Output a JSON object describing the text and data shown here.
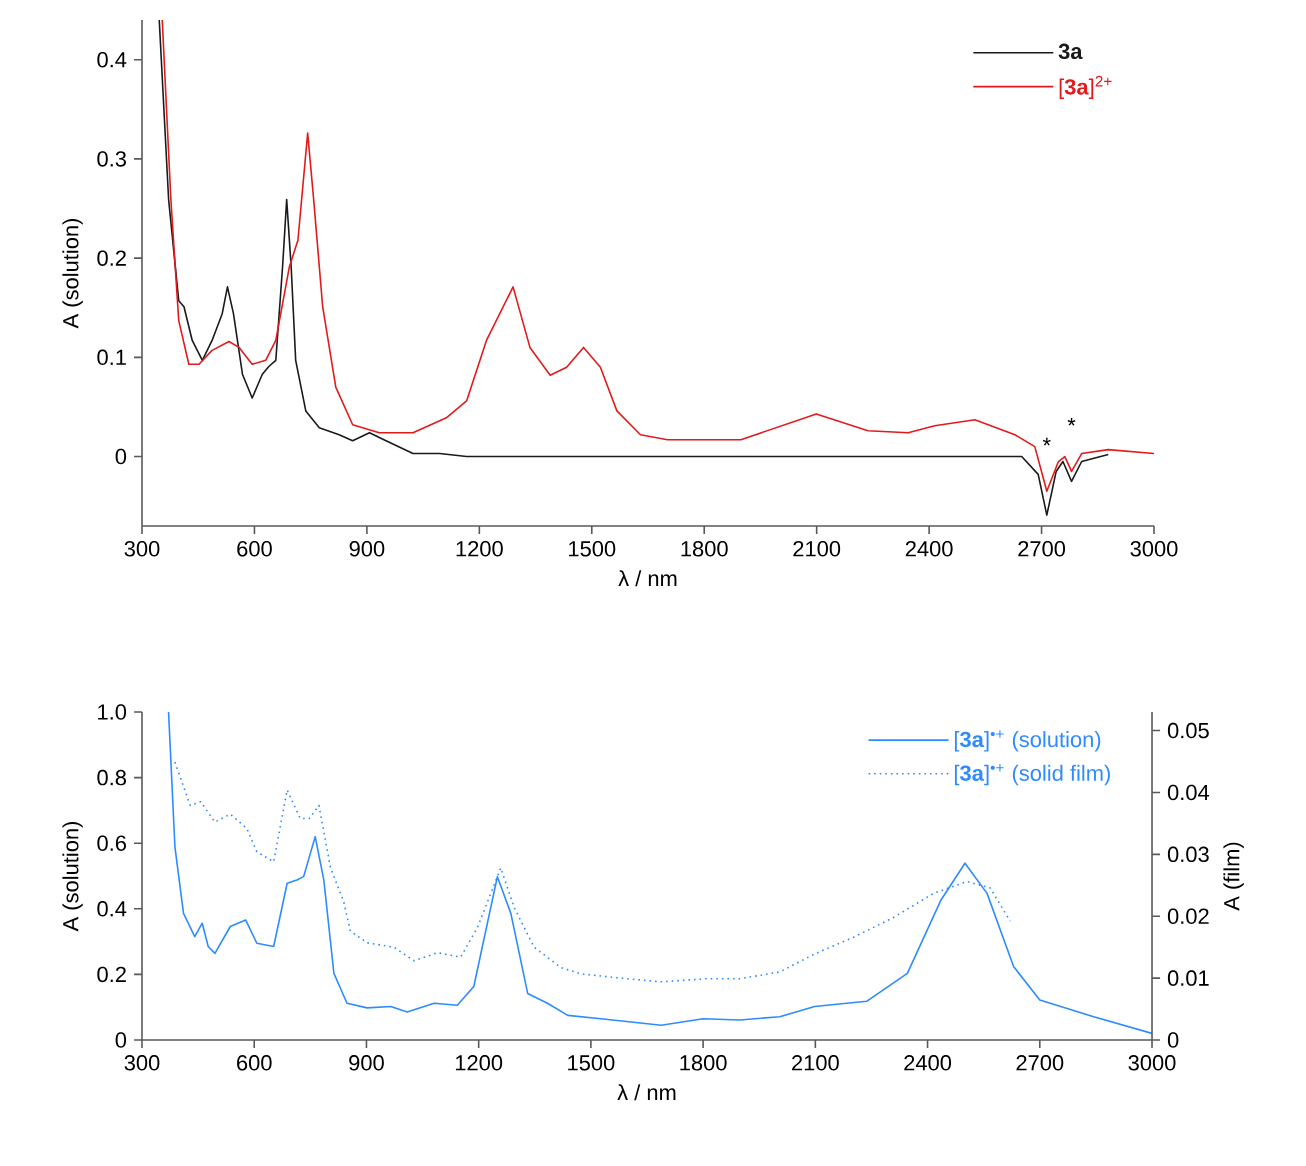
{
  "chart_data": [
    {
      "type": "line",
      "xlabel": "λ / nm",
      "ylabel": "A (solution)",
      "xlim": [
        300,
        3000
      ],
      "ylim": [
        -0.07,
        0.44
      ],
      "xticks": [
        300,
        600,
        900,
        1200,
        1500,
        1800,
        2100,
        2400,
        2700,
        3000
      ],
      "yticks": [
        0,
        0.1,
        0.2,
        0.3,
        0.4
      ],
      "legend": "top right",
      "annotations": [
        {
          "text": "*",
          "x": 2714,
          "y": -0.035
        },
        {
          "text": "*",
          "x": 2780,
          "y": -0.015
        }
      ],
      "series": [
        {
          "name": "**3a**",
          "color": "#1a1a1a",
          "line_style": "solid",
          "x": [
            346,
            371,
            398,
            412,
            434,
            461,
            487,
            514,
            528,
            544,
            568,
            594,
            621,
            639,
            657,
            675,
            686,
            698,
            710,
            737,
            773,
            826,
            862,
            907,
            951,
            1023,
            1094,
            1166,
            1500,
            1900,
            2300,
            2647,
            2691,
            2714,
            2739,
            2757,
            2780,
            2807,
            2878
          ],
          "values": [
            0.44,
            0.259,
            0.157,
            0.151,
            0.117,
            0.097,
            0.117,
            0.144,
            0.171,
            0.144,
            0.083,
            0.059,
            0.083,
            0.091,
            0.097,
            0.191,
            0.259,
            0.191,
            0.097,
            0.046,
            0.029,
            0.022,
            0.016,
            0.024,
            0.016,
            0.003,
            0.003,
            0,
            0,
            0,
            0,
            0,
            -0.018,
            -0.059,
            -0.015,
            -0.005,
            -0.025,
            -0.005,
            0.002
          ]
        },
        {
          "name": "[**3a**]$^{2+}$",
          "color": "#e31a1c",
          "line_style": "solid",
          "x": [
            354,
            377,
            398,
            425,
            452,
            487,
            532,
            559,
            594,
            630,
            657,
            693,
            716,
            742,
            758,
            782,
            817,
            862,
            933,
            1023,
            1112,
            1166,
            1219,
            1290,
            1335,
            1389,
            1433,
            1478,
            1523,
            1567,
            1630,
            1702,
            1898,
            2099,
            2237,
            2344,
            2415,
            2522,
            2629,
            2682,
            2714,
            2745,
            2762,
            2780,
            2807,
            2878,
            3000
          ],
          "values": [
            0.44,
            0.259,
            0.137,
            0.093,
            0.093,
            0.107,
            0.116,
            0.11,
            0.093,
            0.097,
            0.117,
            0.191,
            0.218,
            0.326,
            0.259,
            0.151,
            0.07,
            0.032,
            0.024,
            0.024,
            0.039,
            0.056,
            0.117,
            0.171,
            0.11,
            0.082,
            0.09,
            0.11,
            0.09,
            0.046,
            0.022,
            0.017,
            0.017,
            0.043,
            0.026,
            0.024,
            0.031,
            0.037,
            0.022,
            0.01,
            -0.035,
            -0.005,
            0,
            -0.015,
            0.003,
            0.007,
            0.003
          ]
        }
      ]
    },
    {
      "type": "line",
      "xlabel": "λ / nm",
      "ylabel": "A (solution)",
      "y2label": "A (film)",
      "xlim": [
        300,
        3000
      ],
      "ylim": [
        0,
        1
      ],
      "y2lim": [
        0,
        0.053
      ],
      "xticks": [
        300,
        600,
        900,
        1200,
        1500,
        1800,
        2100,
        2400,
        2700,
        3000
      ],
      "yticks": [
        0,
        0.2,
        0.4,
        0.6,
        0.8,
        {
          "value": 1,
          "label": "1.0"
        }
      ],
      "y2ticks": [
        0,
        0.01,
        0.02,
        0.03,
        0.04,
        0.05
      ],
      "legend": "top right",
      "series": [
        {
          "name": "[**3a**]$^{•+}$ (solution)",
          "color": "#2e8bff",
          "line_style": "solid",
          "x": [
            371,
            388,
            411,
            441,
            461,
            477,
            495,
            536,
            577,
            607,
            652,
            688,
            714,
            732,
            763,
            786,
            813,
            848,
            902,
            965,
            1009,
            1081,
            1143,
            1187,
            1250,
            1286,
            1331,
            1384,
            1438,
            1527,
            1688,
            1800,
            1898,
            2005,
            2098,
            2237,
            2346,
            2436,
            2500,
            2559,
            2630,
            2700,
            2844,
            3000
          ],
          "values": [
            1.0,
            0.589,
            0.386,
            0.315,
            0.356,
            0.285,
            0.264,
            0.346,
            0.366,
            0.295,
            0.285,
            0.478,
            0.488,
            0.498,
            0.62,
            0.488,
            0.203,
            0.112,
            0.098,
            0.102,
            0.085,
            0.112,
            0.106,
            0.163,
            0.498,
            0.386,
            0.142,
            0.112,
            0.075,
            0.065,
            0.045,
            0.065,
            0.061,
            0.071,
            0.102,
            0.118,
            0.203,
            0.427,
            0.539,
            0.447,
            0.224,
            0.122,
            0.071,
            0.02
          ]
        },
        {
          "name": "[**3a**]$^{•+}$ (solid film)",
          "color": "#2e8bff",
          "line_style": "dotted",
          "axis": "y2",
          "x": [
            388,
            429,
            457,
            495,
            536,
            580,
            607,
            652,
            688,
            723,
            747,
            773,
            804,
            839,
            857,
            902,
            973,
            1027,
            1090,
            1152,
            1197,
            1259,
            1295,
            1348,
            1420,
            1473,
            1563,
            1688,
            1809,
            1898,
            2005,
            2098,
            2202,
            2309,
            2416,
            2505,
            2567,
            2621
          ],
          "values": [
            0.0449,
            0.0379,
            0.0385,
            0.0352,
            0.0365,
            0.0342,
            0.0304,
            0.0288,
            0.0404,
            0.0358,
            0.0358,
            0.0379,
            0.0278,
            0.0224,
            0.0176,
            0.0157,
            0.015,
            0.0128,
            0.0141,
            0.0134,
            0.0182,
            0.0278,
            0.0214,
            0.015,
            0.0117,
            0.0107,
            0.0101,
            0.0094,
            0.0099,
            0.0099,
            0.011,
            0.0139,
            0.0166,
            0.0198,
            0.0237,
            0.0256,
            0.0246,
            0.0192
          ]
        }
      ]
    }
  ]
}
